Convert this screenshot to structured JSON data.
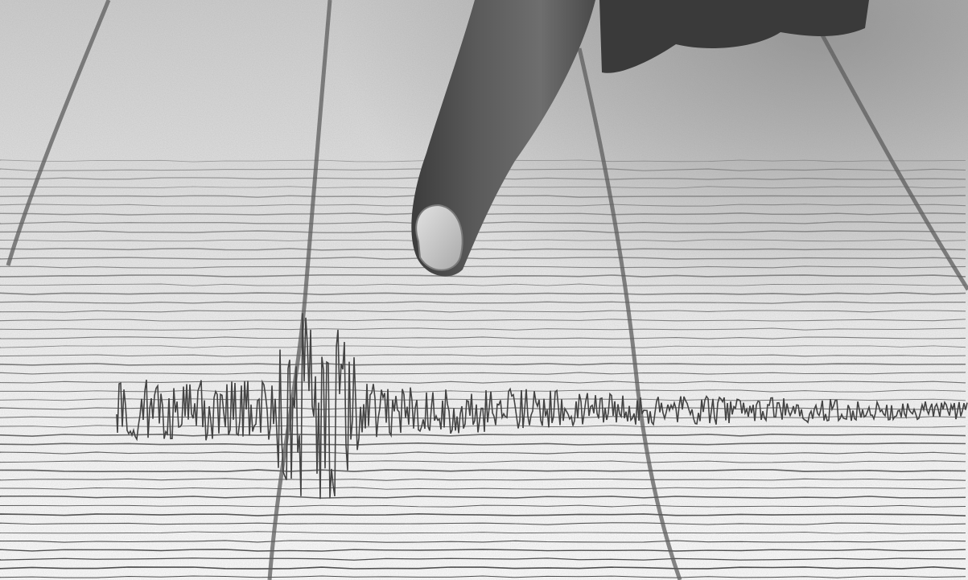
{
  "image": {
    "kind": "photograph",
    "palette": "grayscale",
    "icons": [
      "finger-icon",
      "seismograph-trace-icon"
    ]
  }
}
